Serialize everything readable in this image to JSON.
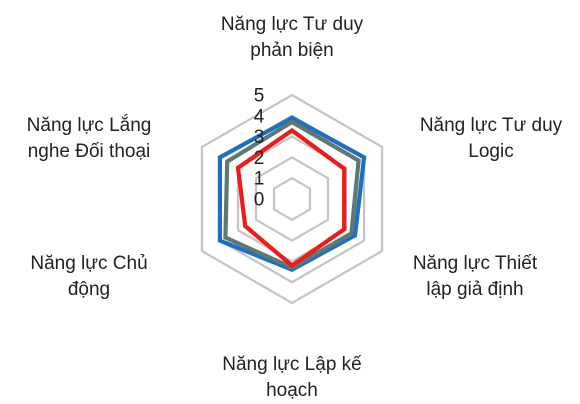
{
  "chart_data": {
    "type": "radar",
    "title": "",
    "categories": [
      [
        "Năng lực Tư duy",
        "phản biện"
      ],
      [
        "Năng lực Tư duy",
        "Logic"
      ],
      [
        "Năng lực Thiết",
        "lập giả định"
      ],
      [
        "Năng lực Lập kế",
        "hoạch"
      ],
      [
        "Năng lực Chủ",
        "động"
      ],
      [
        "Năng lực Lắng",
        "nghe Đối thoại"
      ]
    ],
    "rlim": [
      0,
      5
    ],
    "ticks": [
      "0",
      "1",
      "2",
      "3",
      "4",
      "5"
    ],
    "grid": true,
    "legend": "none",
    "series": [
      {
        "color": "#1F6FC0",
        "values": [
          3.9,
          4.0,
          3.5,
          3.4,
          4.0,
          4.0
        ]
      },
      {
        "color": "#5E7874",
        "values": [
          3.7,
          3.7,
          3.3,
          3.3,
          3.7,
          3.6
        ]
      },
      {
        "color": "#EE1B1B",
        "values": [
          3.3,
          2.9,
          2.9,
          3.2,
          2.6,
          3.0
        ]
      }
    ]
  }
}
